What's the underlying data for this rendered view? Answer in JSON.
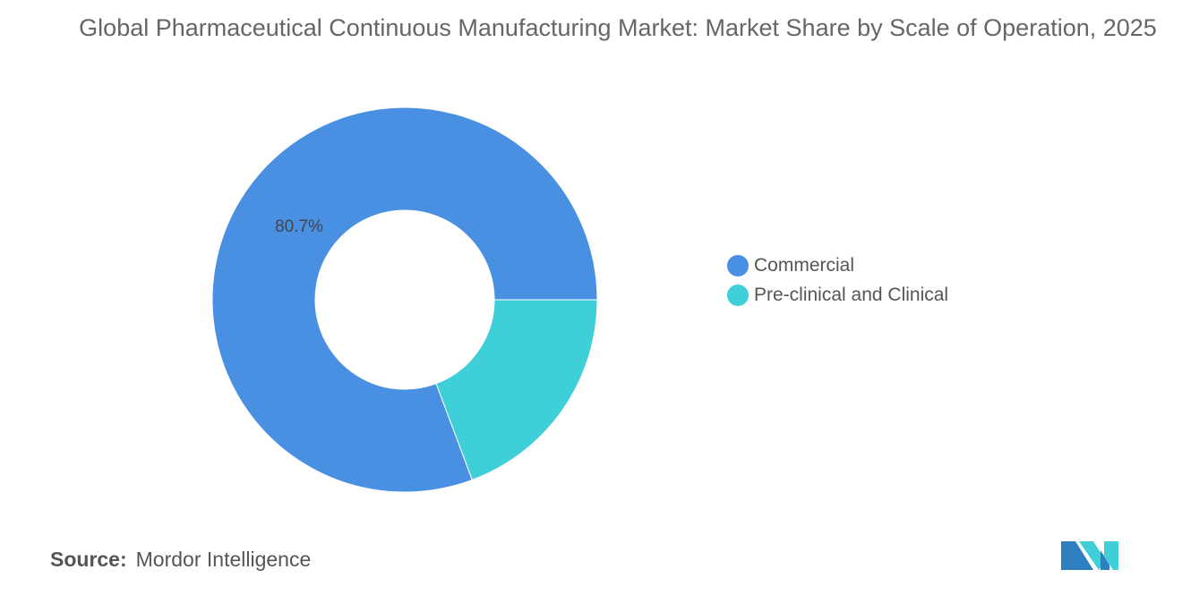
{
  "chart_data": {
    "type": "pie",
    "donut": true,
    "title": "Global Pharmaceutical Continuous Manufacturing Market: Market Share by Scale of Operation, 2025",
    "categories": [
      "Commercial",
      "Pre-clinical and Clinical"
    ],
    "values": [
      80.7,
      19.3
    ],
    "unit": "%",
    "data_labels": [
      "80.7%",
      ""
    ],
    "colors": [
      "#4A90E2",
      "#3ECFD9"
    ],
    "legend_placement": "right"
  },
  "source": {
    "label": "Source:",
    "value": "Mordor Intelligence"
  },
  "logo": {
    "text": "Mordor Intelligence",
    "colors": [
      "#2E7FC1",
      "#3ECFD9"
    ]
  }
}
